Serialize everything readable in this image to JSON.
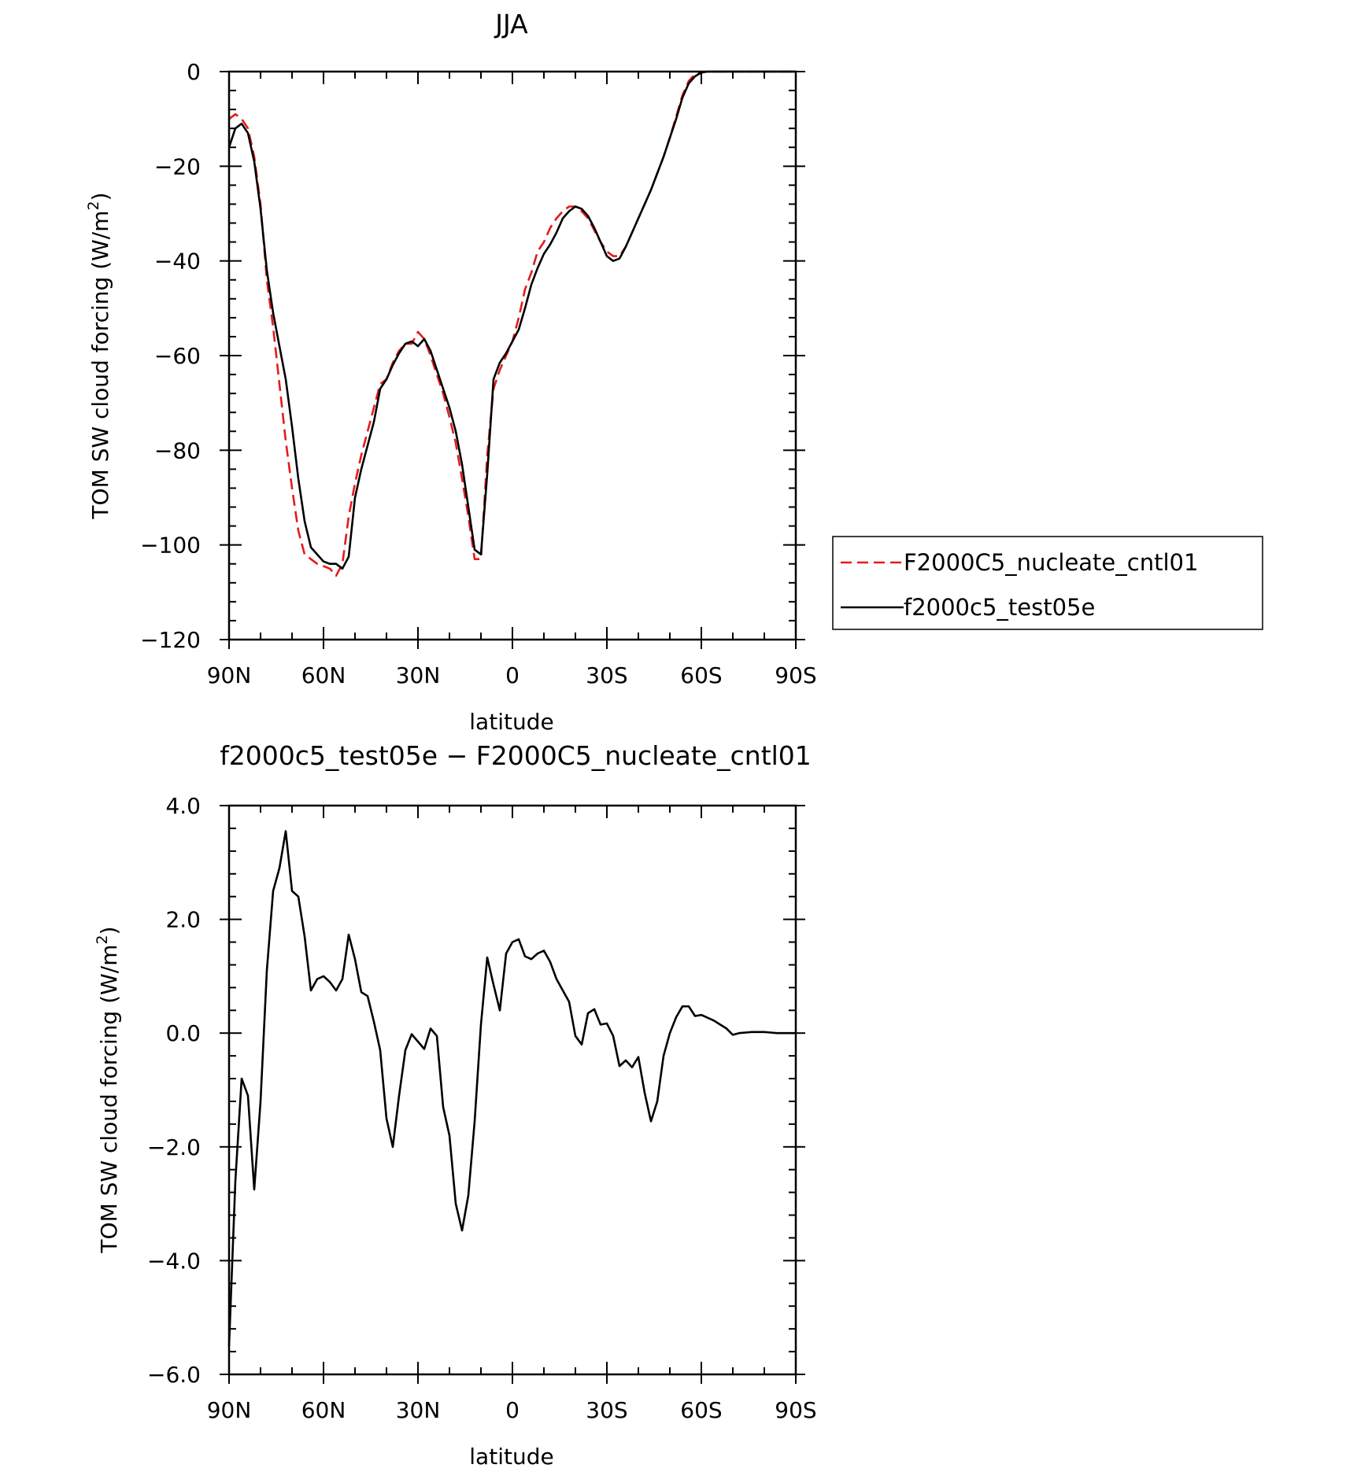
{
  "chart_data": [
    {
      "type": "line",
      "title": "JJA",
      "xlabel": "latitude",
      "ylabel_prefix": "TOM SW cloud forcing (W/m",
      "ylabel_sup": "2",
      "ylabel_suffix": ")",
      "xlim": [
        90,
        -90
      ],
      "ylim": [
        -120,
        0
      ],
      "x_ticks": [
        90,
        60,
        30,
        0,
        -30,
        -60,
        -90
      ],
      "x_tick_labels": [
        "90N",
        "60N",
        "30N",
        "0",
        "30S",
        "60S",
        "90S"
      ],
      "y_ticks": [
        0,
        -20,
        -40,
        -60,
        -80,
        -100,
        -120
      ],
      "y_tick_labels": [
        "0",
        "−20",
        "−40",
        "−60",
        "−80",
        "−100",
        "−120"
      ],
      "legend": "right",
      "series": [
        {
          "name": "F2000C5_nucleate_cntl01",
          "color": "#e41a1c",
          "dash": "dashed",
          "x": [
            90,
            88,
            86,
            84,
            82,
            80,
            78,
            76,
            74,
            72,
            70,
            68,
            66,
            64,
            62,
            60,
            58,
            56,
            54,
            52,
            50,
            48,
            46,
            44,
            42,
            40,
            38,
            36,
            34,
            32,
            30,
            28,
            26,
            24,
            22,
            20,
            18,
            16,
            14,
            12,
            10,
            8,
            6,
            4,
            2,
            0,
            -2,
            -4,
            -6,
            -8,
            -10,
            -12,
            -14,
            -16,
            -18,
            -20,
            -22,
            -24,
            -26,
            -28,
            -30,
            -32,
            -34,
            -36,
            -38,
            -40,
            -42,
            -44,
            -46,
            -48,
            -50,
            -52,
            -54,
            -56,
            -58,
            -60,
            -62,
            -64,
            -66,
            -68,
            -70,
            -72,
            -74,
            -76,
            -78,
            -80,
            -82,
            -84,
            -86,
            -88,
            -90
          ],
          "y": [
            -10,
            -9,
            -10,
            -12,
            -18,
            -28,
            -44,
            -54,
            -66,
            -78,
            -88,
            -97,
            -102,
            -103,
            -104,
            -104.5,
            -105,
            -106.5,
            -104,
            -94,
            -87,
            -81,
            -76,
            -71,
            -66,
            -65,
            -61.5,
            -59,
            -57.5,
            -57.5,
            -55,
            -56.5,
            -60,
            -64,
            -68,
            -73,
            -78.5,
            -86,
            -94,
            -103,
            -103,
            -81,
            -67,
            -63,
            -60,
            -57,
            -52,
            -46,
            -42.5,
            -38,
            -36,
            -33,
            -31,
            -29.5,
            -28.5,
            -28.5,
            -29.5,
            -31,
            -33.5,
            -36,
            -38,
            -39,
            -39,
            -37,
            -34,
            -31,
            -28,
            -25,
            -21.5,
            -18,
            -14,
            -9.5,
            -5,
            -2,
            -0.5,
            -0.1,
            0,
            0,
            0,
            0,
            0,
            0,
            0,
            0,
            0,
            0,
            0,
            0,
            0,
            0,
            0
          ]
        },
        {
          "name": "f2000c5_test05e",
          "color": "#000000",
          "dash": "solid",
          "x": [
            90,
            88,
            86,
            84,
            82,
            80,
            78,
            76,
            74,
            72,
            70,
            68,
            66,
            64,
            62,
            60,
            58,
            56,
            54,
            52,
            50,
            48,
            46,
            44,
            42,
            40,
            38,
            36,
            34,
            32,
            30,
            28,
            26,
            24,
            22,
            20,
            18,
            16,
            14,
            12,
            10,
            8,
            6,
            4,
            2,
            0,
            -2,
            -4,
            -6,
            -8,
            -10,
            -12,
            -14,
            -16,
            -18,
            -20,
            -22,
            -24,
            -26,
            -28,
            -30,
            -32,
            -34,
            -36,
            -38,
            -40,
            -42,
            -44,
            -46,
            -48,
            -50,
            -52,
            -54,
            -56,
            -58,
            -60,
            -62,
            -64,
            -66,
            -68,
            -70,
            -72,
            -74,
            -76,
            -78,
            -80,
            -82,
            -84,
            -86,
            -88,
            -90
          ],
          "y": [
            -16,
            -12,
            -11,
            -13,
            -19,
            -29,
            -42,
            -51,
            -58,
            -65,
            -75,
            -86,
            -95,
            -100.5,
            -102,
            -103.5,
            -104,
            -104,
            -105,
            -102.5,
            -90,
            -84,
            -79,
            -74,
            -67,
            -65,
            -62,
            -59.5,
            -57.5,
            -57,
            -58,
            -56.5,
            -59,
            -63,
            -67,
            -71,
            -76,
            -83,
            -92,
            -101,
            -102,
            -85,
            -65,
            -61.5,
            -59.5,
            -57,
            -54.5,
            -50,
            -45,
            -41.5,
            -38.5,
            -36.5,
            -34,
            -31,
            -29.5,
            -28.5,
            -29,
            -30.5,
            -33,
            -36,
            -39,
            -40,
            -39.5,
            -37,
            -34,
            -31,
            -28,
            -25,
            -21.5,
            -18,
            -14,
            -10,
            -5.5,
            -2.5,
            -1,
            -0.2,
            0,
            0,
            0,
            0,
            0,
            0,
            0,
            0,
            0,
            0,
            0,
            0,
            0,
            0,
            0
          ]
        }
      ]
    },
    {
      "type": "line",
      "title": "f2000c5_test05e − F2000C5_nucleate_cntl01",
      "xlabel": "latitude",
      "ylabel_prefix": "TOM SW cloud forcing (W/m",
      "ylabel_sup": "2",
      "ylabel_suffix": ")",
      "xlim": [
        90,
        -90
      ],
      "ylim": [
        -6,
        4
      ],
      "x_ticks": [
        90,
        60,
        30,
        0,
        -30,
        -60,
        -90
      ],
      "x_tick_labels": [
        "90N",
        "60N",
        "30N",
        "0",
        "30S",
        "60S",
        "90S"
      ],
      "y_ticks": [
        4,
        2,
        0,
        -2,
        -4,
        -6
      ],
      "y_tick_labels": [
        "4.0",
        "2.0",
        "0.0",
        "−2.0",
        "−4.0",
        "−6.0"
      ],
      "series": [
        {
          "color": "#000000",
          "dash": "solid",
          "x": [
            90,
            88,
            86,
            84,
            82,
            80,
            78,
            76,
            74,
            72,
            70,
            68,
            66,
            64,
            62,
            60,
            58,
            56,
            54,
            52,
            50,
            48,
            46,
            44,
            42,
            40,
            38,
            36,
            34,
            32,
            30,
            28,
            26,
            24,
            22,
            20,
            18,
            16,
            14,
            12,
            10,
            8,
            6,
            4,
            2,
            0,
            -2,
            -4,
            -6,
            -8,
            -10,
            -12,
            -14,
            -16,
            -18,
            -20,
            -22,
            -24,
            -26,
            -28,
            -30,
            -32,
            -34,
            -36,
            -38,
            -40,
            -42,
            -44,
            -46,
            -48,
            -50,
            -52,
            -54,
            -56,
            -58,
            -60,
            -62,
            -64,
            -66,
            -68,
            -70,
            -72,
            -74,
            -76,
            -78,
            -80,
            -82,
            -84,
            -86,
            -88,
            -90
          ],
          "y": [
            -5.5,
            -2.6,
            -0.8,
            -1.1,
            -2.75,
            -1.2,
            1.1,
            2.5,
            2.9,
            3.55,
            2.5,
            2.4,
            1.7,
            0.75,
            0.95,
            1.0,
            0.9,
            0.75,
            0.95,
            1.73,
            1.3,
            0.72,
            0.65,
            0.2,
            -0.3,
            -1.5,
            -2.0,
            -1.1,
            -0.3,
            -0.02,
            -0.15,
            -0.28,
            0.08,
            -0.05,
            -1.3,
            -1.8,
            -3.0,
            -3.47,
            -2.85,
            -1.55,
            0.15,
            1.33,
            0.85,
            0.4,
            1.4,
            1.6,
            1.65,
            1.35,
            1.3,
            1.4,
            1.45,
            1.25,
            0.95,
            0.75,
            0.55,
            -0.05,
            -0.2,
            0.35,
            0.42,
            0.15,
            0.17,
            -0.05,
            -0.58,
            -0.48,
            -0.6,
            -0.42,
            -1.05,
            -1.55,
            -1.2,
            -0.4,
            0.0,
            0.28,
            0.47,
            0.47,
            0.3,
            0.32,
            0.27,
            0.22,
            0.15,
            0.08,
            -0.03,
            0.0,
            0.01,
            0.02,
            0.02,
            0.02,
            0.01,
            0.0,
            0.0,
            0.0,
            0.0
          ]
        }
      ]
    }
  ]
}
